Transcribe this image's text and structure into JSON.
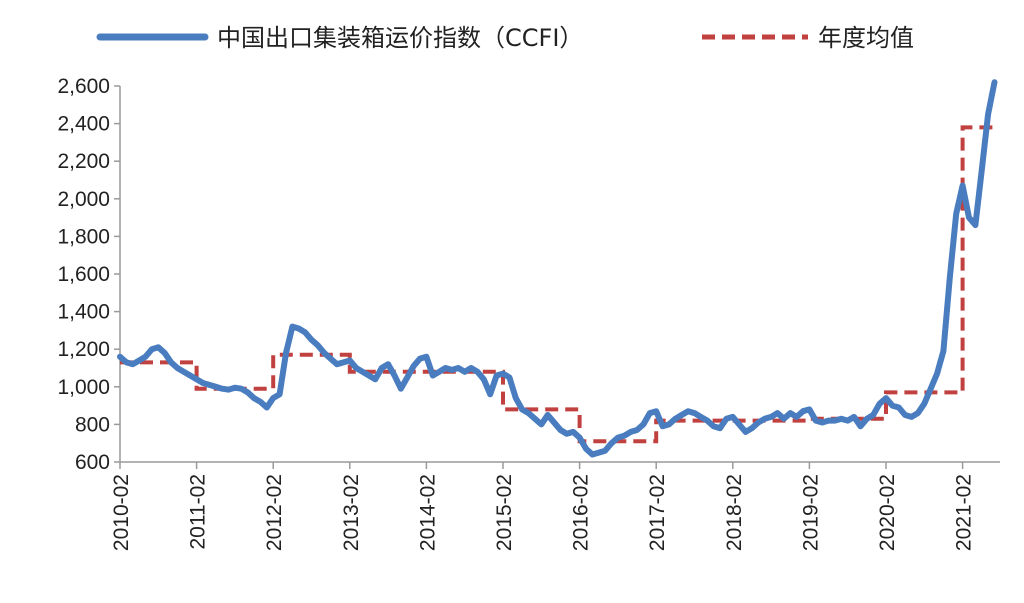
{
  "chart_data": {
    "type": "line",
    "title": "",
    "xlabel": "",
    "ylabel": "",
    "ylim": [
      600,
      2600
    ],
    "y_ticks": [
      "600",
      "800",
      "1,000",
      "1,200",
      "1,400",
      "1,600",
      "1,800",
      "2,000",
      "2,200",
      "2,400",
      "2,600"
    ],
    "x_ticks": [
      "2010-02",
      "2011-02",
      "2012-02",
      "2013-02",
      "2014-02",
      "2015-02",
      "2016-02",
      "2017-02",
      "2018-02",
      "2019-02",
      "2020-02",
      "2021-02"
    ],
    "legend_position": "top",
    "grid": false,
    "colors": {
      "ccfi": "#4a7dbf",
      "annual_avg": "#c0413f"
    },
    "series": [
      {
        "name": "中国出口集装箱运价指数（CCFI）",
        "style": "solid",
        "points": [
          [
            "2010-02",
            1160
          ],
          [
            "2010-03",
            1130
          ],
          [
            "2010-04",
            1120
          ],
          [
            "2010-05",
            1140
          ],
          [
            "2010-06",
            1160
          ],
          [
            "2010-07",
            1200
          ],
          [
            "2010-08",
            1210
          ],
          [
            "2010-09",
            1180
          ],
          [
            "2010-10",
            1130
          ],
          [
            "2010-11",
            1100
          ],
          [
            "2010-12",
            1080
          ],
          [
            "2011-01",
            1060
          ],
          [
            "2011-02",
            1040
          ],
          [
            "2011-03",
            1020
          ],
          [
            "2011-04",
            1010
          ],
          [
            "2011-05",
            1000
          ],
          [
            "2011-06",
            990
          ],
          [
            "2011-07",
            985
          ],
          [
            "2011-08",
            995
          ],
          [
            "2011-09",
            990
          ],
          [
            "2011-10",
            970
          ],
          [
            "2011-11",
            940
          ],
          [
            "2011-12",
            920
          ],
          [
            "2012-01",
            890
          ],
          [
            "2012-02",
            940
          ],
          [
            "2012-03",
            960
          ],
          [
            "2012-04",
            1180
          ],
          [
            "2012-05",
            1320
          ],
          [
            "2012-06",
            1310
          ],
          [
            "2012-07",
            1290
          ],
          [
            "2012-08",
            1250
          ],
          [
            "2012-09",
            1220
          ],
          [
            "2012-10",
            1180
          ],
          [
            "2012-11",
            1150
          ],
          [
            "2012-12",
            1120
          ],
          [
            "2013-01",
            1130
          ],
          [
            "2013-02",
            1140
          ],
          [
            "2013-03",
            1100
          ],
          [
            "2013-04",
            1080
          ],
          [
            "2013-05",
            1060
          ],
          [
            "2013-06",
            1040
          ],
          [
            "2013-07",
            1100
          ],
          [
            "2013-08",
            1120
          ],
          [
            "2013-09",
            1060
          ],
          [
            "2013-10",
            990
          ],
          [
            "2013-11",
            1050
          ],
          [
            "2013-12",
            1110
          ],
          [
            "2014-01",
            1150
          ],
          [
            "2014-02",
            1160
          ],
          [
            "2014-03",
            1060
          ],
          [
            "2014-04",
            1080
          ],
          [
            "2014-05",
            1100
          ],
          [
            "2014-06",
            1090
          ],
          [
            "2014-07",
            1100
          ],
          [
            "2014-08",
            1080
          ],
          [
            "2014-09",
            1100
          ],
          [
            "2014-10",
            1080
          ],
          [
            "2014-11",
            1040
          ],
          [
            "2014-12",
            960
          ],
          [
            "2015-01",
            1060
          ],
          [
            "2015-02",
            1070
          ],
          [
            "2015-03",
            1050
          ],
          [
            "2015-04",
            940
          ],
          [
            "2015-05",
            880
          ],
          [
            "2015-06",
            860
          ],
          [
            "2015-07",
            830
          ],
          [
            "2015-08",
            800
          ],
          [
            "2015-09",
            850
          ],
          [
            "2015-10",
            810
          ],
          [
            "2015-11",
            770
          ],
          [
            "2015-12",
            750
          ],
          [
            "2016-01",
            760
          ],
          [
            "2016-02",
            730
          ],
          [
            "2016-03",
            670
          ],
          [
            "2016-04",
            640
          ],
          [
            "2016-05",
            650
          ],
          [
            "2016-06",
            660
          ],
          [
            "2016-07",
            700
          ],
          [
            "2016-08",
            730
          ],
          [
            "2016-09",
            740
          ],
          [
            "2016-10",
            760
          ],
          [
            "2016-11",
            770
          ],
          [
            "2016-12",
            800
          ],
          [
            "2017-01",
            860
          ],
          [
            "2017-02",
            870
          ],
          [
            "2017-03",
            790
          ],
          [
            "2017-04",
            800
          ],
          [
            "2017-05",
            830
          ],
          [
            "2017-06",
            850
          ],
          [
            "2017-07",
            870
          ],
          [
            "2017-08",
            860
          ],
          [
            "2017-09",
            840
          ],
          [
            "2017-10",
            820
          ],
          [
            "2017-11",
            790
          ],
          [
            "2017-12",
            780
          ],
          [
            "2018-01",
            830
          ],
          [
            "2018-02",
            840
          ],
          [
            "2018-03",
            800
          ],
          [
            "2018-04",
            760
          ],
          [
            "2018-05",
            780
          ],
          [
            "2018-06",
            810
          ],
          [
            "2018-07",
            830
          ],
          [
            "2018-08",
            840
          ],
          [
            "2018-09",
            860
          ],
          [
            "2018-10",
            830
          ],
          [
            "2018-11",
            860
          ],
          [
            "2018-12",
            840
          ],
          [
            "2019-01",
            870
          ],
          [
            "2019-02",
            880
          ],
          [
            "2019-03",
            820
          ],
          [
            "2019-04",
            810
          ],
          [
            "2019-05",
            820
          ],
          [
            "2019-06",
            820
          ],
          [
            "2019-07",
            830
          ],
          [
            "2019-08",
            820
          ],
          [
            "2019-09",
            840
          ],
          [
            "2019-10",
            790
          ],
          [
            "2019-11",
            830
          ],
          [
            "2019-12",
            850
          ],
          [
            "2020-01",
            910
          ],
          [
            "2020-02",
            940
          ],
          [
            "2020-03",
            900
          ],
          [
            "2020-04",
            890
          ],
          [
            "2020-05",
            850
          ],
          [
            "2020-06",
            840
          ],
          [
            "2020-07",
            860
          ],
          [
            "2020-08",
            910
          ],
          [
            "2020-09",
            990
          ],
          [
            "2020-10",
            1070
          ],
          [
            "2020-11",
            1190
          ],
          [
            "2020-12",
            1580
          ],
          [
            "2021-01",
            1920
          ],
          [
            "2021-02",
            2070
          ],
          [
            "2021-03",
            1900
          ],
          [
            "2021-04",
            1860
          ],
          [
            "2021-05",
            2150
          ],
          [
            "2021-06",
            2450
          ],
          [
            "2021-07",
            2620
          ]
        ]
      },
      {
        "name": "年度均值",
        "style": "dashed",
        "segments": [
          {
            "from": "2010-02",
            "to": "2011-02",
            "value": 1130
          },
          {
            "from": "2011-02",
            "to": "2012-02",
            "value": 990
          },
          {
            "from": "2012-02",
            "to": "2013-02",
            "value": 1170
          },
          {
            "from": "2013-02",
            "to": "2014-02",
            "value": 1080
          },
          {
            "from": "2014-02",
            "to": "2015-02",
            "value": 1080
          },
          {
            "from": "2015-02",
            "to": "2016-02",
            "value": 880
          },
          {
            "from": "2016-02",
            "to": "2017-02",
            "value": 710
          },
          {
            "from": "2017-02",
            "to": "2018-02",
            "value": 820
          },
          {
            "from": "2018-02",
            "to": "2019-02",
            "value": 820
          },
          {
            "from": "2019-02",
            "to": "2020-02",
            "value": 830
          },
          {
            "from": "2020-02",
            "to": "2021-02",
            "value": 970
          },
          {
            "from": "2021-02",
            "to": "2021-07",
            "value": 2380
          }
        ]
      }
    ]
  }
}
